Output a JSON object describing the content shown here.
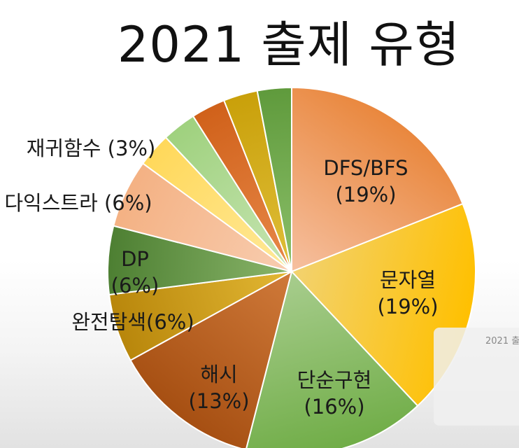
{
  "chart_data": {
    "type": "pie",
    "title": "2021 출제 유형",
    "slices": [
      {
        "label": "DFS/BFS",
        "pct": "(19%)",
        "value": 19,
        "c1": "#e9873d",
        "c2": "#f6c0a0"
      },
      {
        "label": "문자열",
        "pct": "(19%)",
        "value": 19,
        "c1": "#ffc000",
        "c2": "#f2d270"
      },
      {
        "label": "단순구현",
        "pct": "(16%)",
        "value": 16,
        "c1": "#70ad47",
        "c2": "#a8cd8e"
      },
      {
        "label": "해시",
        "pct": "(13%)",
        "value": 13,
        "c1": "#a64f12",
        "c2": "#d07a3a"
      },
      {
        "label": "완전탐색(6%)",
        "pct": "",
        "value": 6,
        "c1": "#b8860b",
        "c2": "#e3b834"
      },
      {
        "label": "DP",
        "pct": "(6%)",
        "value": 6,
        "c1": "#4d7f32",
        "c2": "#8ab56a"
      },
      {
        "label": "다익스트라 (6%)",
        "pct": "",
        "value": 6,
        "c1": "#f4b183",
        "c2": "#f8cdb0"
      },
      {
        "label": "재귀함수 (3%)",
        "pct": "",
        "value": 3,
        "c1": "#ffd85a",
        "c2": "#ffe99a"
      },
      {
        "label": "",
        "pct": "",
        "value": 3,
        "c1": "#9fd17e",
        "c2": "#c7e5b3"
      },
      {
        "label": "",
        "pct": "",
        "value": 3,
        "c1": "#d0611a",
        "c2": "#e8894a"
      },
      {
        "label": "",
        "pct": "",
        "value": 3,
        "c1": "#c9a00a",
        "c2": "#e0bf3a"
      },
      {
        "label": "",
        "pct": "",
        "value": 3,
        "c1": "#5f9a3c",
        "c2": "#8cc06a"
      }
    ]
  },
  "thumbnail": {
    "title": "2021 출"
  }
}
